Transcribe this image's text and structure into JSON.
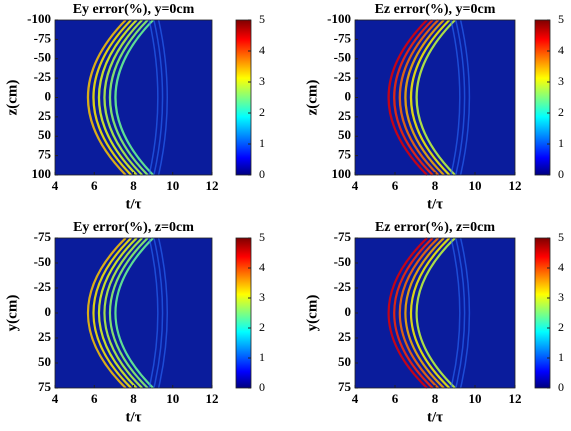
{
  "chart_data": [
    {
      "type": "heatmap",
      "title": "Ey error(%), y=0cm",
      "xlabel": "t/τ",
      "ylabel": "z(cm)",
      "xlim": [
        4,
        12
      ],
      "xticks": [
        4,
        6,
        8,
        10,
        12
      ],
      "ylim": [
        -100,
        100
      ],
      "yticks": [
        -100,
        -75,
        -50,
        -25,
        0,
        25,
        50,
        75,
        100
      ],
      "yreverse": true,
      "colormap": "jet",
      "clim": [
        0,
        5
      ],
      "cticks": [
        0,
        1,
        2,
        3,
        4,
        5
      ]
    },
    {
      "type": "heatmap",
      "title": "Ez error(%), y=0cm",
      "xlabel": "t/τ",
      "ylabel": "z(cm)",
      "xlim": [
        4,
        12
      ],
      "xticks": [
        4,
        6,
        8,
        10,
        12
      ],
      "ylim": [
        -100,
        100
      ],
      "yticks": [
        -100,
        -75,
        -50,
        -25,
        0,
        25,
        50,
        75,
        100
      ],
      "yreverse": true,
      "colormap": "jet",
      "clim": [
        0,
        5
      ],
      "cticks": [
        0,
        1,
        2,
        3,
        4,
        5
      ]
    },
    {
      "type": "heatmap",
      "title": "Ey error(%), z=0cm",
      "xlabel": "t/τ",
      "ylabel": "y(cm)",
      "xlim": [
        4,
        12
      ],
      "xticks": [
        4,
        6,
        8,
        10,
        12
      ],
      "ylim": [
        -75,
        75
      ],
      "yticks": [
        -75,
        -50,
        -25,
        0,
        25,
        50,
        75
      ],
      "yreverse": true,
      "colormap": "jet",
      "clim": [
        0,
        5
      ],
      "cticks": [
        0,
        1,
        2,
        3,
        4,
        5
      ]
    },
    {
      "type": "heatmap",
      "title": "Ez error(%), z=0cm",
      "xlabel": "t/τ",
      "ylabel": "y(cm)",
      "xlim": [
        4,
        12
      ],
      "xticks": [
        4,
        6,
        8,
        10,
        12
      ],
      "ylim": [
        -75,
        75
      ],
      "yticks": [
        -75,
        -50,
        -25,
        0,
        25,
        50,
        75
      ],
      "yreverse": true,
      "colormap": "jet",
      "clim": [
        0,
        5
      ],
      "cticks": [
        0,
        1,
        2,
        3,
        4,
        5
      ]
    }
  ]
}
